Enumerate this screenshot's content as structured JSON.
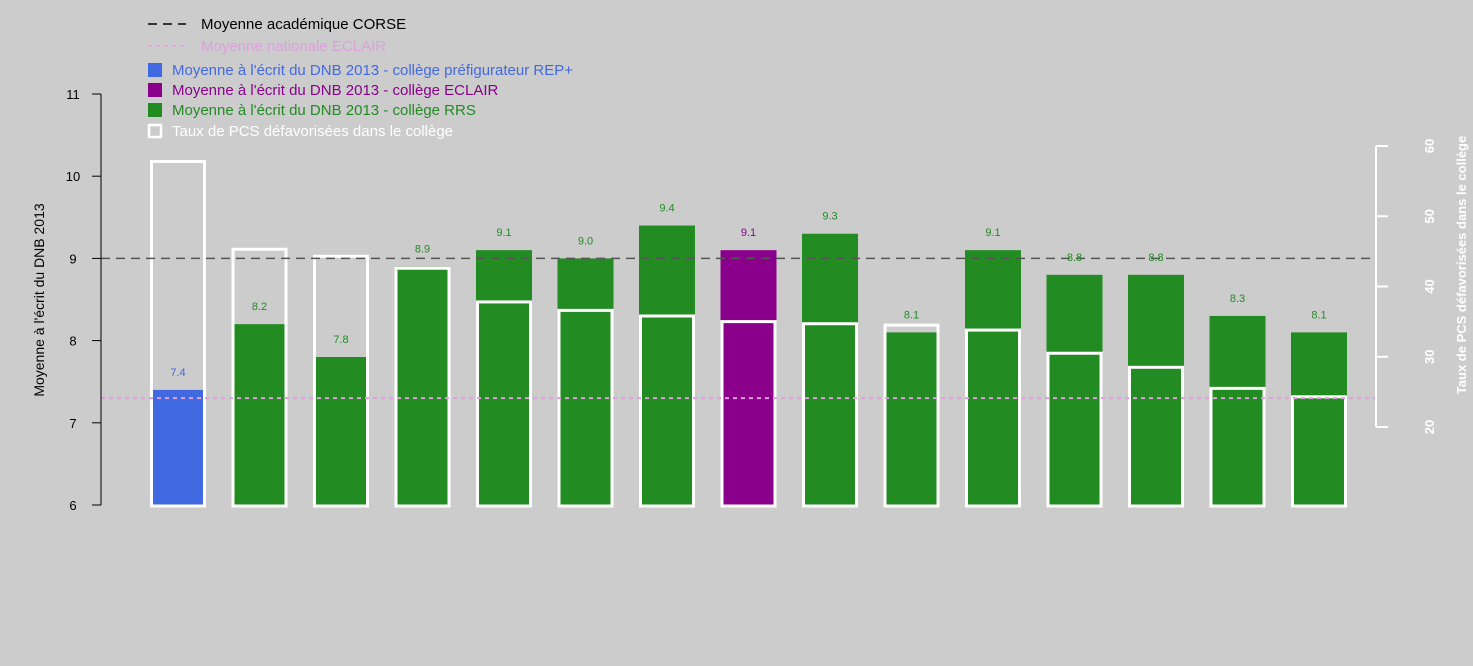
{
  "chart_data": {
    "type": "bar",
    "ylabel": "Moyenne à l'écrit du DNB 2013",
    "ylim": [
      6,
      11
    ],
    "y_ticks": [
      "6",
      "7",
      "8",
      "9",
      "10",
      "11"
    ],
    "y2label": "Taux de PCS défavorisées dans le collège",
    "y2lim": [
      20,
      60
    ],
    "y2_ticks": [
      "20",
      "30",
      "40",
      "50",
      "60"
    ],
    "reference_lines": [
      {
        "name": "Moyenne académique CORSE",
        "value": 9.0,
        "color": "#555555",
        "style": "dashed"
      },
      {
        "name": "Moyenne nationale ECLAIR",
        "value": 7.3,
        "color": "#dda0dd",
        "style": "dotted"
      }
    ],
    "series": [
      {
        "name": "Moyenne à l'écrit du DNB 2013 - collège préfigurateur REP+",
        "color": "#4169e1"
      },
      {
        "name": "Moyenne à l'écrit du DNB 2013 - collège ECLAIR",
        "color": "#8b008b"
      },
      {
        "name": "Moyenne à l'écrit du DNB 2013 - collège RRS",
        "color": "#228b22"
      },
      {
        "name": "Taux de PCS défavorisées dans le collège",
        "color": "#ffffff"
      }
    ],
    "bars": [
      {
        "value": 7.4,
        "label": "7.4",
        "group": "REP+",
        "pcs_rate": 57.8
      },
      {
        "value": 8.2,
        "label": "8.2",
        "group": "RRS",
        "pcs_rate": 45.3
      },
      {
        "value": 7.8,
        "label": "7.8",
        "group": "RRS",
        "pcs_rate": 44.3
      },
      {
        "value": 8.9,
        "label": "8.9",
        "group": "RRS",
        "pcs_rate": 42.6
      },
      {
        "value": 9.1,
        "label": "9.1",
        "group": "RRS",
        "pcs_rate": 37.8
      },
      {
        "value": 9.0,
        "label": "9.0",
        "group": "RRS",
        "pcs_rate": 36.6
      },
      {
        "value": 9.4,
        "label": "9.4",
        "group": "RRS",
        "pcs_rate": 35.8
      },
      {
        "value": 9.1,
        "label": "9.1",
        "group": "ECLAIR",
        "pcs_rate": 35.0
      },
      {
        "value": 9.3,
        "label": "9.3",
        "group": "RRS",
        "pcs_rate": 34.7
      },
      {
        "value": 8.1,
        "label": "8.1",
        "group": "RRS",
        "pcs_rate": 34.5
      },
      {
        "value": 9.1,
        "label": "9.1",
        "group": "RRS",
        "pcs_rate": 33.8
      },
      {
        "value": 8.8,
        "label": "8.8",
        "group": "RRS",
        "pcs_rate": 30.5
      },
      {
        "value": 8.8,
        "label": "8.8",
        "group": "RRS",
        "pcs_rate": 28.5
      },
      {
        "value": 8.3,
        "label": "8.3",
        "group": "RRS",
        "pcs_rate": 25.5
      },
      {
        "value": 8.1,
        "label": "8.1",
        "group": "RRS",
        "pcs_rate": 24.3
      }
    ],
    "group_colors": {
      "REP+": "#4169e1",
      "ECLAIR": "#8b008b",
      "RRS": "#228b22"
    },
    "grid": false
  }
}
